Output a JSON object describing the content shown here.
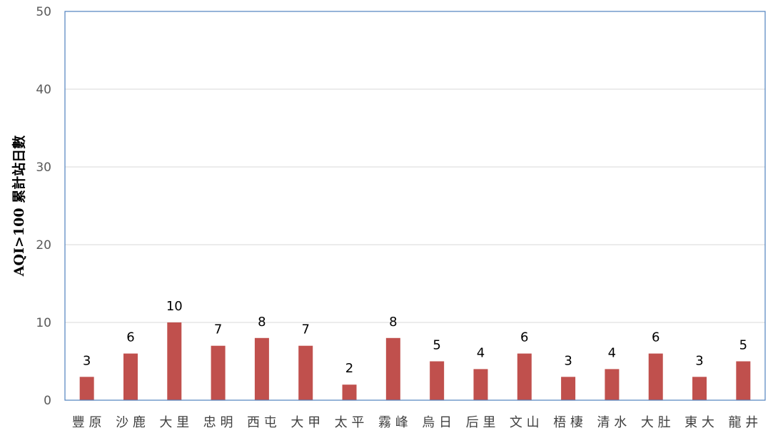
{
  "chart_data": {
    "type": "bar",
    "title": "",
    "xlabel": "",
    "ylabel": "AQI>100 累計站日數",
    "ylim": [
      0,
      50
    ],
    "yticks": [
      0,
      10,
      20,
      30,
      40,
      50
    ],
    "grid": true,
    "legend": "none",
    "bar_color": "#c0504d",
    "gridline_color": "#d9d9d9",
    "plot_border_color": "#4f81bd",
    "categories": [
      "豐原",
      "沙鹿",
      "大里",
      "忠明",
      "西屯",
      "大甲",
      "太平",
      "霧峰",
      "烏日",
      "后里",
      "文山",
      "梧棲",
      "清水",
      "大肚",
      "東大",
      "龍井"
    ],
    "series": [
      {
        "values": [
          3,
          6,
          10,
          7,
          8,
          7,
          2,
          8,
          5,
          4,
          6,
          3,
          4,
          6,
          3,
          5
        ]
      }
    ],
    "data_labels": true
  }
}
